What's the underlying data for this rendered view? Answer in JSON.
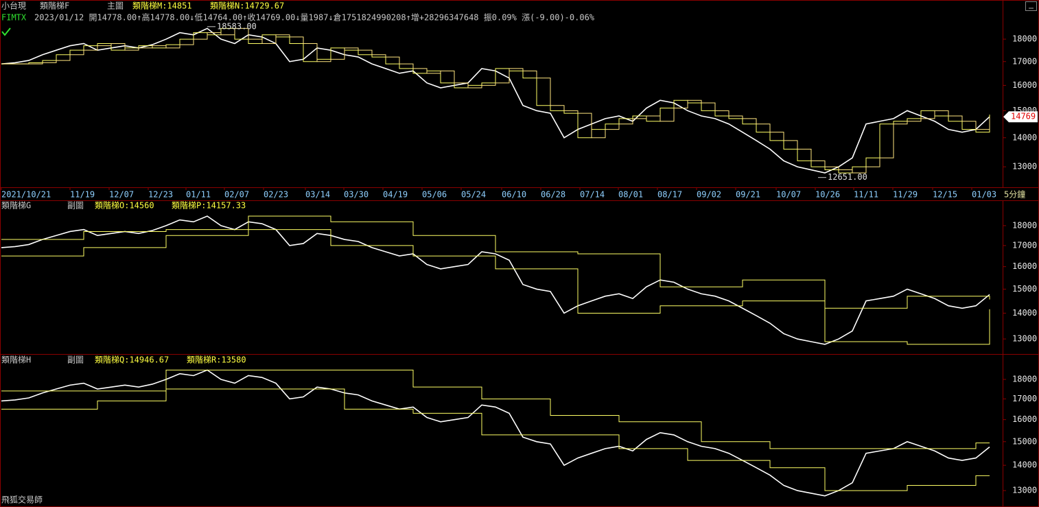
{
  "app_label": "飛狐交易師",
  "chart_data": [
    {
      "type": "line",
      "symbol": "小台現",
      "indicator": "類階梯F",
      "pane_label": "主圖",
      "code": "FIMTX",
      "quote_line": "2023/01/12 開14778.00↑高14778.00↓低14764.00↑收14769.00↓量1987↓倉1751824990208↑增+28296347648 振0.09% 漲(-9.00)-0.06%",
      "log_scale": true,
      "grid": false,
      "x_unit_label": "5分鐘",
      "xlim": [
        0,
        72.75
      ],
      "ylim": [
        12360,
        19820
      ],
      "yticks": [
        13000,
        14000,
        15000,
        16000,
        17000,
        18000
      ],
      "xticks": [
        {
          "value": 0,
          "label": "2021/10/21"
        },
        {
          "value": 5,
          "label": "11/19"
        },
        {
          "value": 7.85,
          "label": "12/07"
        },
        {
          "value": 10.7,
          "label": "12/23"
        },
        {
          "value": 13.45,
          "label": "01/11"
        },
        {
          "value": 16.25,
          "label": "02/07"
        },
        {
          "value": 19.1,
          "label": "02/23"
        },
        {
          "value": 22.15,
          "label": "03/14"
        },
        {
          "value": 24.95,
          "label": "03/30"
        },
        {
          "value": 27.8,
          "label": "04/19"
        },
        {
          "value": 30.65,
          "label": "05/06"
        },
        {
          "value": 33.5,
          "label": "05/24"
        },
        {
          "value": 36.45,
          "label": "06/10"
        },
        {
          "value": 39.3,
          "label": "06/28"
        },
        {
          "value": 42.15,
          "label": "07/14"
        },
        {
          "value": 44.95,
          "label": "08/01"
        },
        {
          "value": 47.8,
          "label": "08/17"
        },
        {
          "value": 50.65,
          "label": "09/02"
        },
        {
          "value": 53.5,
          "label": "09/21"
        },
        {
          "value": 56.45,
          "label": "10/07"
        },
        {
          "value": 59.3,
          "label": "10/26"
        },
        {
          "value": 62.1,
          "label": "11/11"
        },
        {
          "value": 64.95,
          "label": "11/29"
        },
        {
          "value": 67.85,
          "label": "12/15"
        },
        {
          "value": 70.7,
          "label": "01/03"
        }
      ],
      "annotations": [
        {
          "text": "18583.00",
          "x": 15,
          "y": 18583
        },
        {
          "text": "12651.00",
          "x": 59.5,
          "y": 12651
        }
      ],
      "series": [
        {
          "color": "#ffffff",
          "style": "line",
          "values": [
            16900,
            16950,
            17050,
            17300,
            17500,
            17700,
            17800,
            17500,
            17600,
            17700,
            17600,
            17750,
            18000,
            18300,
            18200,
            18500,
            18000,
            17800,
            18200,
            18100,
            17800,
            17000,
            17100,
            17600,
            17500,
            17300,
            17200,
            16900,
            16700,
            16500,
            16600,
            16100,
            15900,
            16000,
            16100,
            16700,
            16600,
            16300,
            15200,
            15000,
            14900,
            14000,
            14300,
            14500,
            14700,
            14800,
            14600,
            15100,
            15400,
            15300,
            15000,
            14800,
            14700,
            14500,
            14200,
            13900,
            13600,
            13200,
            13000,
            12900,
            12800,
            13000,
            13300,
            14500,
            14600,
            14700,
            15000,
            14800,
            14600,
            14300,
            14200,
            14300,
            14769
          ]
        },
        {
          "name": "類階梯M:14851",
          "color": "#ffff66",
          "style": "step",
          "values": [
            16900,
            16900,
            16950,
            17050,
            17300,
            17500,
            17700,
            17800,
            17500,
            17600,
            17700,
            17600,
            17750,
            18000,
            18300,
            18200,
            18500,
            18000,
            17800,
            18200,
            18100,
            17800,
            17000,
            17100,
            17600,
            17500,
            17300,
            17200,
            16900,
            16700,
            16500,
            16600,
            16100,
            15900,
            16000,
            16100,
            16700,
            16600,
            16300,
            15200,
            15000,
            14900,
            14000,
            14300,
            14500,
            14700,
            14800,
            14600,
            15100,
            15400,
            15300,
            15000,
            14800,
            14700,
            14500,
            14200,
            13900,
            13600,
            13200,
            13000,
            12900,
            12800,
            13000,
            13300,
            14500,
            14600,
            14700,
            15000,
            14800,
            14600,
            14300,
            14200,
            14851
          ]
        },
        {
          "name": "類階梯N:14729.67",
          "color": "#ffe680",
          "style": "step",
          "values": [
            16900,
            16900,
            16900,
            16950,
            17050,
            17300,
            17500,
            17700,
            17800,
            17500,
            17600,
            17700,
            17600,
            17750,
            18000,
            18300,
            18200,
            18500,
            18000,
            17800,
            18200,
            18100,
            17800,
            17000,
            17100,
            17600,
            17500,
            17300,
            17200,
            16900,
            16700,
            16500,
            16600,
            16100,
            15900,
            16000,
            16100,
            16700,
            16600,
            16300,
            15200,
            15000,
            14900,
            14000,
            14300,
            14500,
            14700,
            14800,
            14600,
            15100,
            15400,
            15300,
            15000,
            14800,
            14700,
            14500,
            14200,
            13900,
            13600,
            13200,
            13000,
            12900,
            12800,
            13000,
            13300,
            14500,
            14600,
            14700,
            15000,
            14800,
            14600,
            14300,
            14729.67
          ]
        }
      ]
    },
    {
      "type": "line",
      "indicator": "類階梯G",
      "pane_label": "副圖",
      "log_scale": true,
      "grid": false,
      "xlim": [
        0,
        72.75
      ],
      "ylim": [
        12450,
        19320
      ],
      "yticks": [
        13000,
        14000,
        15000,
        16000,
        17000,
        18000
      ],
      "series": [
        {
          "color": "#ffffff",
          "style": "line",
          "values": [
            16900,
            16950,
            17050,
            17300,
            17500,
            17700,
            17800,
            17500,
            17600,
            17700,
            17600,
            17750,
            18000,
            18300,
            18200,
            18500,
            18000,
            17800,
            18200,
            18100,
            17800,
            17000,
            17100,
            17600,
            17500,
            17300,
            17200,
            16900,
            16700,
            16500,
            16600,
            16100,
            15900,
            16000,
            16100,
            16700,
            16600,
            16300,
            15200,
            15000,
            14900,
            14000,
            14300,
            14500,
            14700,
            14800,
            14600,
            15100,
            15400,
            15300,
            15000,
            14800,
            14700,
            14500,
            14200,
            13900,
            13600,
            13200,
            13000,
            12900,
            12800,
            13000,
            13300,
            14500,
            14600,
            14700,
            15000,
            14800,
            14600,
            14300,
            14200,
            14300,
            14769
          ]
        },
        {
          "name": "類階梯O:14560",
          "color": "#ffff66",
          "style": "step",
          "values": [
            17300,
            17300,
            17300,
            17300,
            17300,
            17300,
            17700,
            17700,
            17700,
            17700,
            17700,
            17700,
            17800,
            17800,
            17800,
            17800,
            17800,
            17800,
            18500,
            18500,
            18500,
            18500,
            18500,
            18500,
            18200,
            18200,
            18200,
            18200,
            18200,
            18200,
            17500,
            17500,
            17500,
            17500,
            17500,
            17500,
            16700,
            16700,
            16700,
            16700,
            16700,
            16700,
            16600,
            16600,
            16600,
            16600,
            16600,
            16600,
            15100,
            15100,
            15100,
            15100,
            15100,
            15100,
            15400,
            15400,
            15400,
            15400,
            15400,
            15400,
            14200,
            14200,
            14200,
            14200,
            14200,
            14200,
            14700,
            14700,
            14700,
            14700,
            14700,
            14700,
            14560
          ]
        },
        {
          "name": "類階梯P:14157.33",
          "color": "#ffff66",
          "style": "step",
          "values": [
            16500,
            16500,
            16500,
            16500,
            16500,
            16500,
            16900,
            16900,
            16900,
            16900,
            16900,
            16900,
            17500,
            17500,
            17500,
            17500,
            17500,
            17500,
            17800,
            17800,
            17800,
            17800,
            17800,
            17800,
            17000,
            17000,
            17000,
            17000,
            17000,
            17000,
            16500,
            16500,
            16500,
            16500,
            16500,
            16500,
            15900,
            15900,
            15900,
            15900,
            15900,
            15900,
            14000,
            14000,
            14000,
            14000,
            14000,
            14000,
            14300,
            14300,
            14300,
            14300,
            14300,
            14300,
            14500,
            14500,
            14500,
            14500,
            14500,
            14500,
            12900,
            12900,
            12900,
            12900,
            12900,
            12900,
            12800,
            12800,
            12800,
            12800,
            12800,
            12800,
            14157.33
          ]
        }
      ]
    },
    {
      "type": "line",
      "indicator": "類階梯H",
      "pane_label": "副圖",
      "log_scale": true,
      "grid": false,
      "xlim": [
        0,
        72.75
      ],
      "ylim": [
        12440,
        19310
      ],
      "yticks": [
        13000,
        14000,
        15000,
        16000,
        17000,
        18000
      ],
      "series": [
        {
          "color": "#ffffff",
          "style": "line",
          "values": [
            16900,
            16950,
            17050,
            17300,
            17500,
            17700,
            17800,
            17500,
            17600,
            17700,
            17600,
            17750,
            18000,
            18300,
            18200,
            18500,
            18000,
            17800,
            18200,
            18100,
            17800,
            17000,
            17100,
            17600,
            17500,
            17300,
            17200,
            16900,
            16700,
            16500,
            16600,
            16100,
            15900,
            16000,
            16100,
            16700,
            16600,
            16300,
            15200,
            15000,
            14900,
            14000,
            14300,
            14500,
            14700,
            14800,
            14600,
            15100,
            15400,
            15300,
            15000,
            14800,
            14700,
            14500,
            14200,
            13900,
            13600,
            13200,
            13000,
            12900,
            12800,
            13000,
            13300,
            14500,
            14600,
            14700,
            15000,
            14800,
            14600,
            14300,
            14200,
            14300,
            14769
          ]
        },
        {
          "name": "類階梯Q:14946.67",
          "color": "#ffff66",
          "style": "step",
          "values": [
            17400,
            17400,
            17400,
            17400,
            17400,
            17400,
            17400,
            17400,
            17400,
            17400,
            17400,
            17400,
            18500,
            18500,
            18500,
            18500,
            18500,
            18500,
            18500,
            18500,
            18500,
            18500,
            18500,
            18500,
            18500,
            18500,
            18500,
            18500,
            18500,
            18500,
            17600,
            17600,
            17600,
            17600,
            17600,
            17000,
            17000,
            17000,
            17000,
            17000,
            16200,
            16200,
            16200,
            16200,
            16200,
            15900,
            15900,
            15900,
            15900,
            15900,
            15900,
            15000,
            15000,
            15000,
            15000,
            15000,
            14700,
            14700,
            14700,
            14700,
            14700,
            14700,
            14700,
            14700,
            14700,
            14700,
            14700,
            14700,
            14700,
            14700,
            14700,
            14946.67,
            14946.67
          ]
        },
        {
          "name": "類階梯R:13580",
          "color": "#ffff66",
          "style": "step",
          "values": [
            16500,
            16500,
            16500,
            16500,
            16500,
            16500,
            16500,
            16900,
            16900,
            16900,
            16900,
            16900,
            17500,
            17500,
            17500,
            17500,
            17500,
            17500,
            17500,
            17500,
            17500,
            17500,
            17500,
            17500,
            17500,
            16500,
            16500,
            16500,
            16500,
            16500,
            16300,
            16300,
            16300,
            16300,
            16300,
            15300,
            15300,
            15300,
            15300,
            15300,
            15300,
            15300,
            15300,
            15300,
            15300,
            14700,
            14700,
            14700,
            14700,
            14700,
            14200,
            14200,
            14200,
            14200,
            14200,
            14200,
            13900,
            13900,
            13900,
            13900,
            13000,
            13000,
            13000,
            13000,
            13000,
            13000,
            13200,
            13200,
            13200,
            13200,
            13200,
            13580,
            13580
          ]
        }
      ]
    }
  ]
}
